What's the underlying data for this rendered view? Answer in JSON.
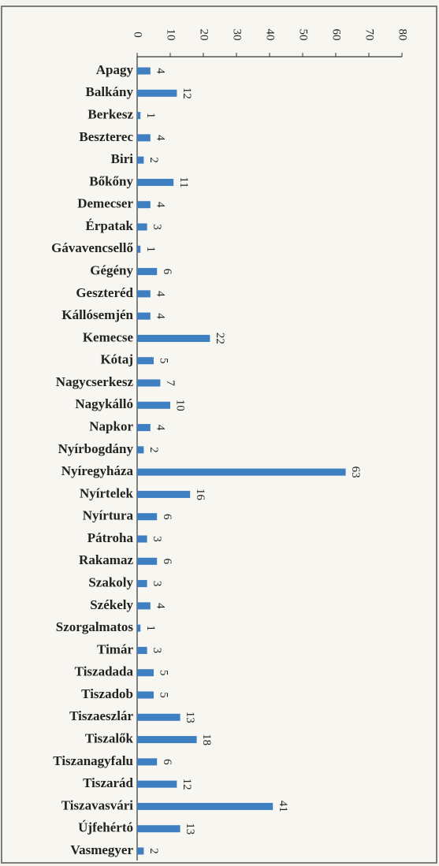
{
  "chart_data": {
    "type": "bar",
    "orientation": "horizontal",
    "categories": [
      "Apagy",
      "Balkány",
      "Berkesz",
      "Beszterec",
      "Biri",
      "Bőkőny",
      "Demecser",
      "Érpatak",
      "Gávavencsellő",
      "Gégény",
      "Geszteréd",
      "Kállósemjén",
      "Kemecse",
      "Kótaj",
      "Nagycserkesz",
      "Nagykálló",
      "Napkor",
      "Nyírbogdány",
      "Nyíregyháza",
      "Nyírtelek",
      "Nyírtura",
      "Pátroha",
      "Rakamaz",
      "Szakoly",
      "Székely",
      "Szorgalmatos",
      "Timár",
      "Tiszadada",
      "Tiszadob",
      "Tiszaeszlár",
      "Tiszalők",
      "Tiszanagyfalu",
      "Tiszarád",
      "Tiszavasvári",
      "Újfehértó",
      "Vasmegyer"
    ],
    "values": [
      4,
      12,
      1,
      4,
      2,
      11,
      4,
      3,
      1,
      6,
      4,
      4,
      22,
      5,
      7,
      10,
      4,
      2,
      63,
      16,
      6,
      3,
      6,
      3,
      4,
      1,
      3,
      5,
      5,
      13,
      18,
      6,
      12,
      41,
      13,
      2
    ],
    "color": "#3d7fc0",
    "xlim": [
      0,
      80
    ],
    "xticks": [
      0,
      10,
      20,
      30,
      40,
      50,
      60,
      70,
      80
    ],
    "grid": false
  }
}
